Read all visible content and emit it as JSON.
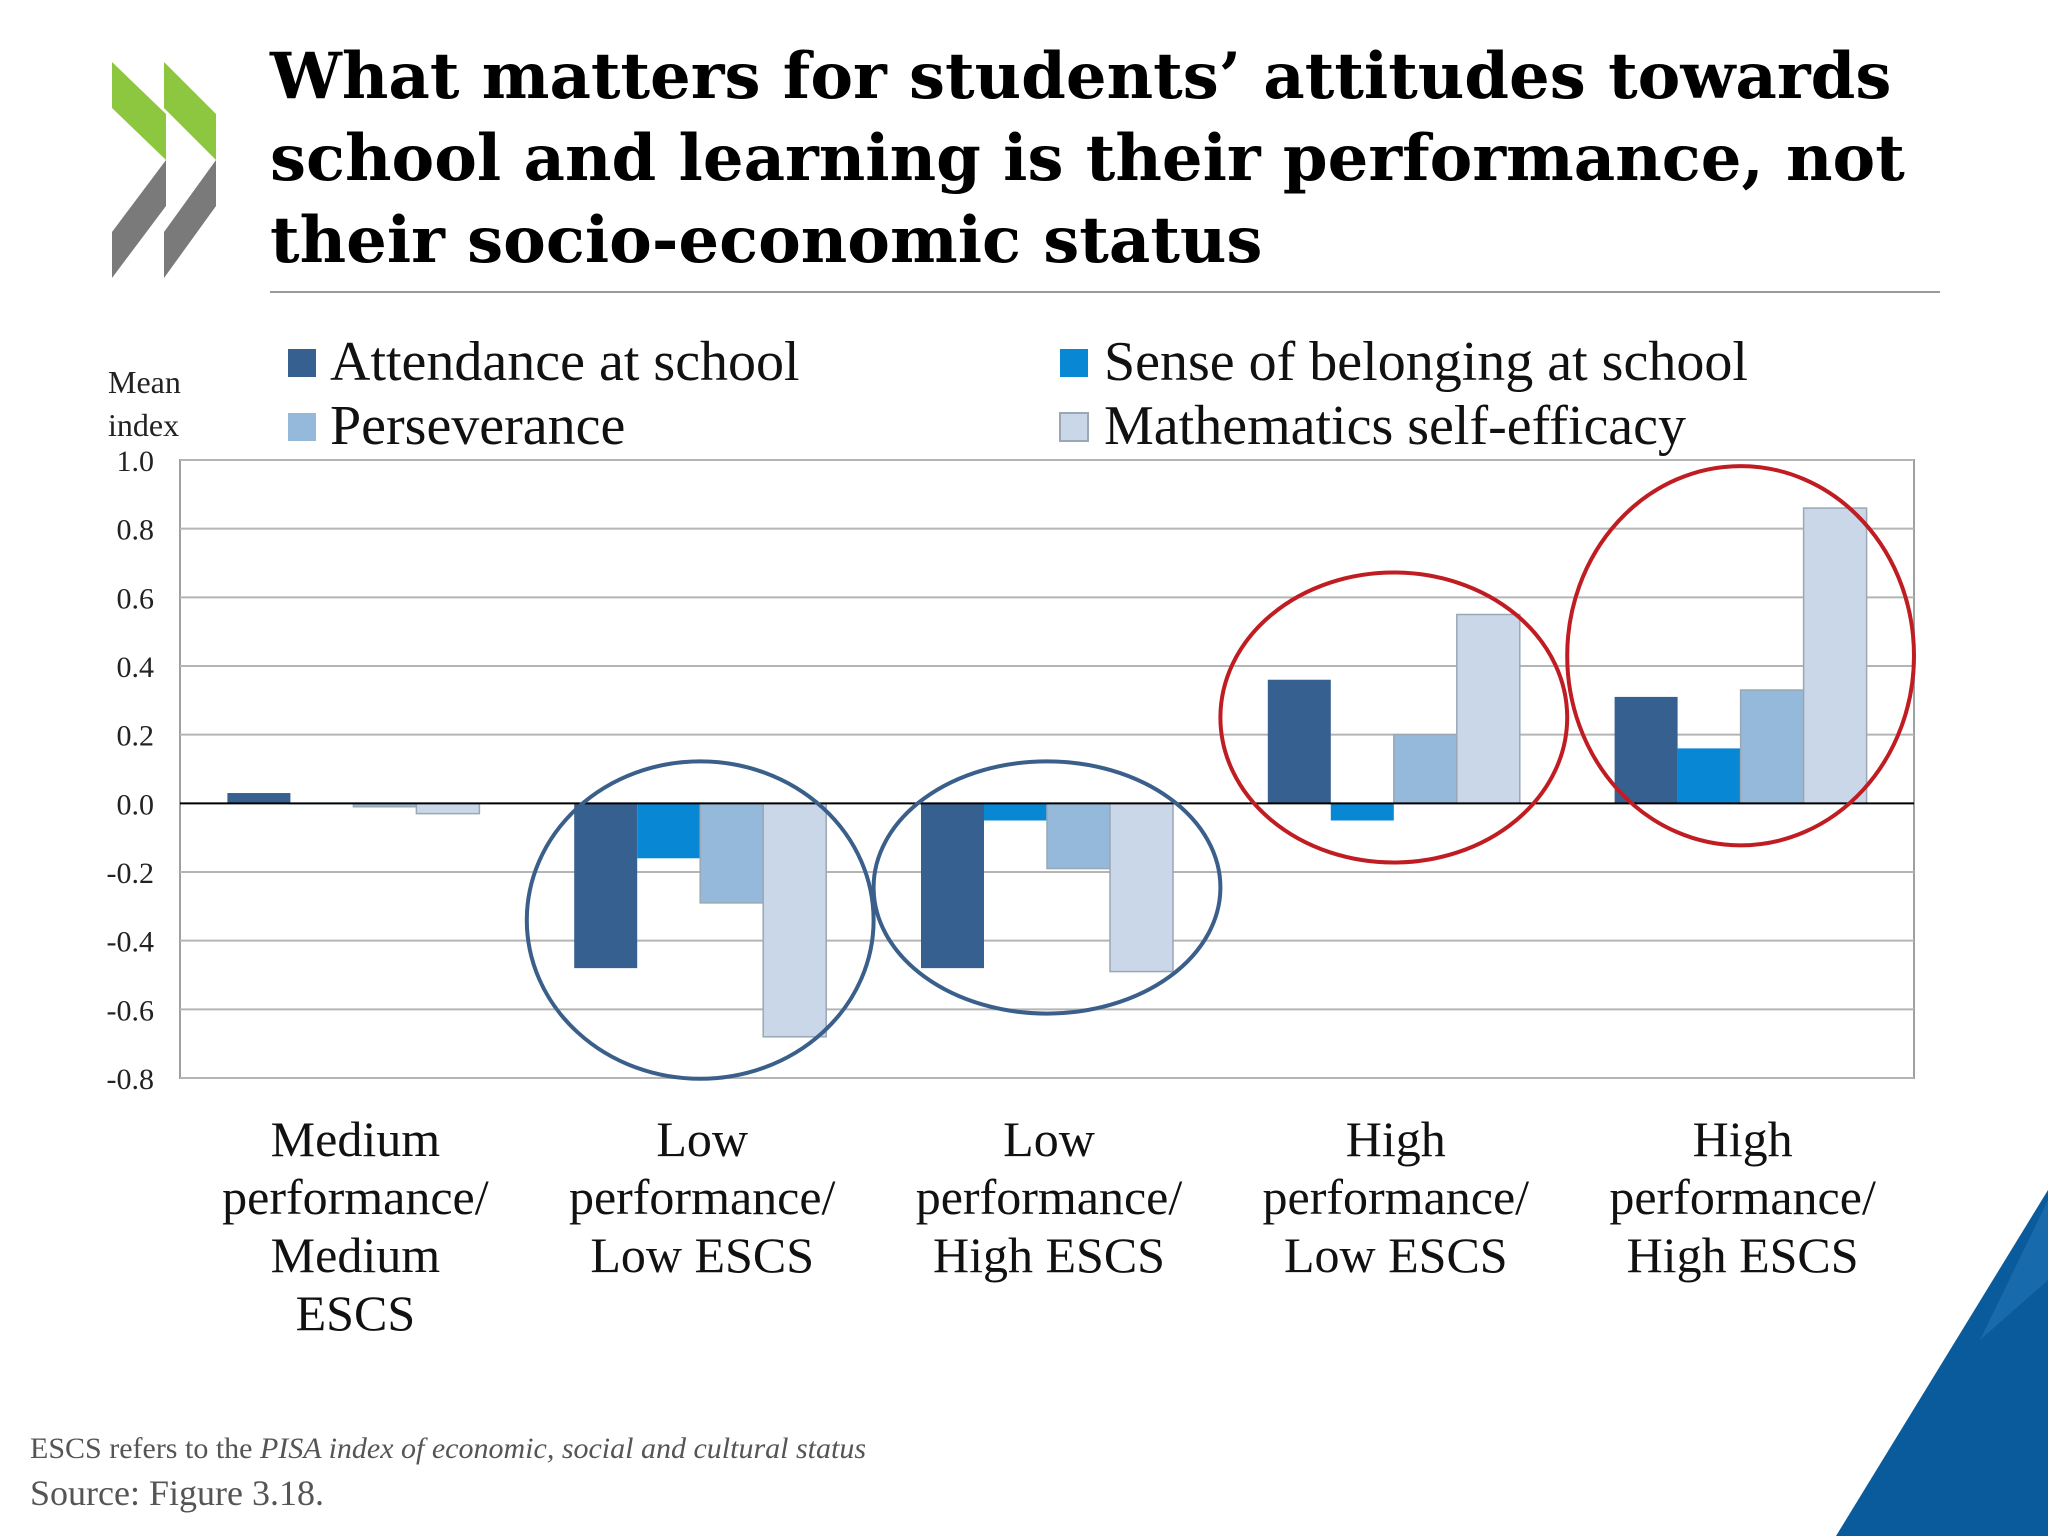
{
  "slide": {
    "title_lines": [
      "What matters for students’ attitudes towards",
      "school and learning is their performance, not",
      "their socio-economic status"
    ],
    "footnote_prefix": "ESCS refers to the ",
    "footnote_italic": "PISA index of economic, social and cultural status",
    "source": "Source: Figure 3.18.",
    "colors": {
      "logo_green": "#8dc63f",
      "logo_gray": "#7a7a7a",
      "corner_blue": "#0a5b9b",
      "circle_blue": "#3a5f8a",
      "circle_red": "#c01d23"
    }
  },
  "chart_data": {
    "type": "bar",
    "ylabel_lines": [
      "Mean",
      "index"
    ],
    "ylim": [
      -0.8,
      1.0
    ],
    "yticks": [
      "1.0",
      "0.8",
      "0.6",
      "0.4",
      "0.2",
      "0.0",
      "-0.2",
      "-0.4",
      "-0.6",
      "-0.8"
    ],
    "ytick_values": [
      1.0,
      0.8,
      0.6,
      0.4,
      0.2,
      0.0,
      -0.2,
      -0.4,
      -0.6,
      -0.8
    ],
    "grid": true,
    "legend_position": "top",
    "categories": [
      [
        "Medium",
        "performance/",
        "Medium",
        "ESCS"
      ],
      [
        "Low",
        "performance/",
        "Low ESCS"
      ],
      [
        "Low",
        "performance/",
        "High ESCS"
      ],
      [
        "High",
        "performance/",
        "Low ESCS"
      ],
      [
        "High",
        "performance/",
        "High ESCS"
      ]
    ],
    "series": [
      {
        "name": "Attendance at school",
        "color": "#36608f",
        "values": [
          0.03,
          -0.48,
          -0.48,
          0.36,
          0.31
        ]
      },
      {
        "name": "Sense of belonging at school",
        "color": "#0787d4",
        "values": [
          0.0,
          -0.16,
          -0.05,
          -0.05,
          0.16
        ]
      },
      {
        "name": "Perseverance",
        "color": "#95b9db",
        "values": [
          -0.01,
          -0.29,
          -0.19,
          0.2,
          0.33
        ]
      },
      {
        "name": "Mathematics self-efficacy",
        "color": "#c9d7e8",
        "values": [
          -0.03,
          -0.68,
          -0.49,
          0.55,
          0.86
        ]
      }
    ],
    "highlight_circles": [
      {
        "category": 1,
        "color": "blue"
      },
      {
        "category": 2,
        "color": "blue"
      },
      {
        "category": 3,
        "color": "red"
      },
      {
        "category": 4,
        "color": "red"
      }
    ]
  }
}
